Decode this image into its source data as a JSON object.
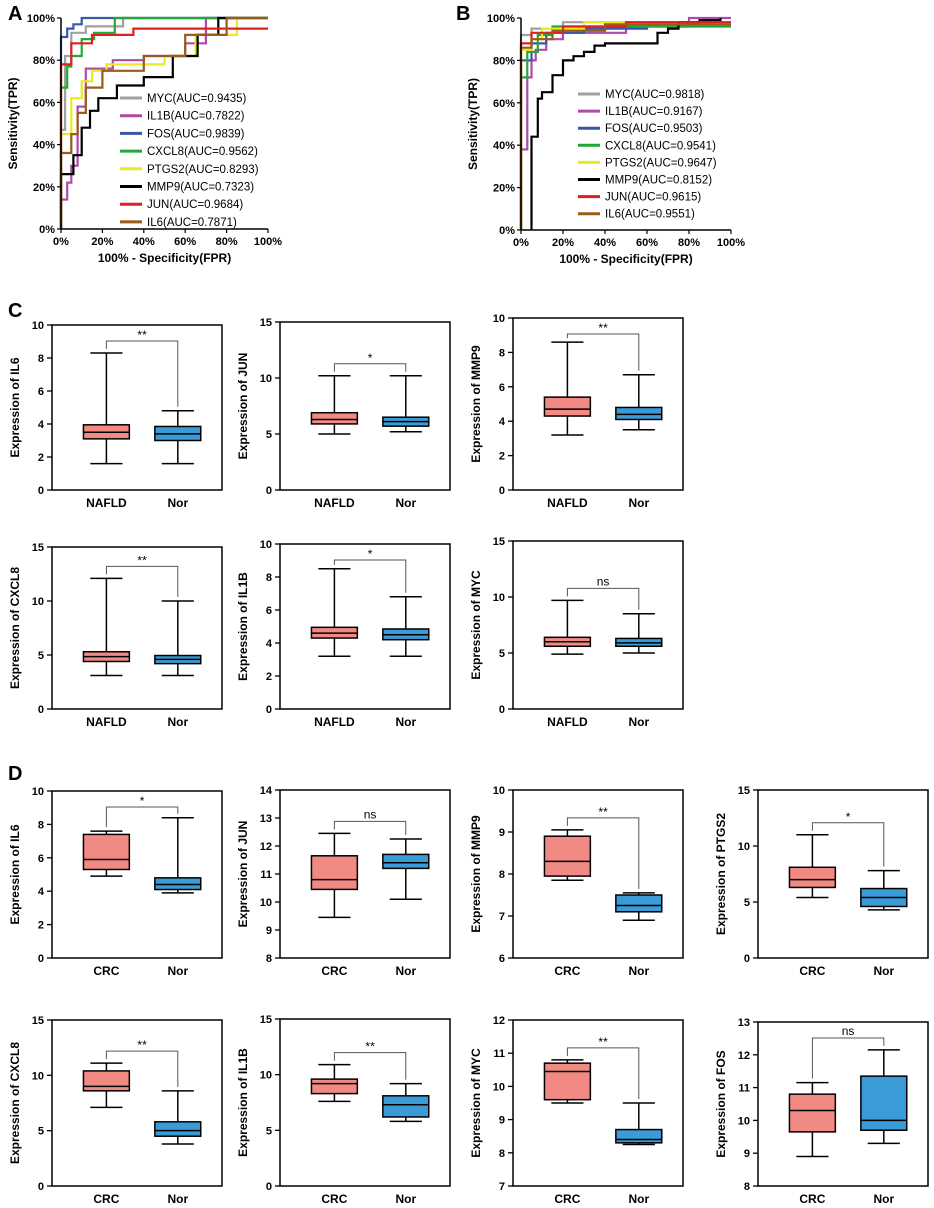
{
  "panels": {
    "A": "A",
    "B": "B",
    "C": "C",
    "D": "D"
  },
  "chart_data": [
    {
      "type": "line",
      "panel": "A",
      "xlabel": "100% - Specificity(FPR)",
      "ylabel": "Sensitivity(TPR)",
      "xlim": [
        0,
        100
      ],
      "ylim": [
        0,
        100
      ],
      "xticks": [
        "0%",
        "20%",
        "40%",
        "60%",
        "80%",
        "100%"
      ],
      "yticks": [
        "0%",
        "20%",
        "40%",
        "60%",
        "80%",
        "100%"
      ],
      "series": [
        {
          "name": "MYC(AUC=0.9435)",
          "color": "#a0a0a0",
          "x": [
            0,
            0,
            2,
            2,
            5,
            5,
            12,
            12,
            30,
            30,
            100
          ],
          "y": [
            0,
            47,
            47,
            82,
            82,
            93,
            93,
            96,
            96,
            100,
            100
          ]
        },
        {
          "name": "IL1B(AUC=0.7822)",
          "color": "#b04aa8",
          "x": [
            0,
            0,
            3,
            3,
            5,
            5,
            8,
            8,
            12,
            12,
            25,
            25,
            40,
            40,
            60,
            60,
            70,
            70,
            100
          ],
          "y": [
            0,
            14,
            14,
            22,
            22,
            30,
            30,
            58,
            58,
            76,
            76,
            80,
            80,
            82,
            82,
            88,
            88,
            100,
            100
          ]
        },
        {
          "name": "FOS(AUC=0.9839)",
          "color": "#3a56a8",
          "x": [
            0,
            0,
            3,
            3,
            6,
            6,
            10,
            10,
            100
          ],
          "y": [
            0,
            91,
            91,
            95,
            95,
            97,
            97,
            100,
            100
          ]
        },
        {
          "name": "CXCL8(AUC=0.9562)",
          "color": "#22a83a",
          "x": [
            0,
            0,
            3,
            3,
            5,
            5,
            10,
            10,
            16,
            16,
            26,
            26,
            100
          ],
          "y": [
            0,
            67,
            67,
            77,
            77,
            82,
            82,
            90,
            90,
            93,
            93,
            100,
            100
          ]
        },
        {
          "name": "PTGS2(AUC=0.8293)",
          "color": "#eaea20",
          "x": [
            0,
            0,
            5,
            5,
            10,
            10,
            15,
            15,
            22,
            22,
            50,
            50,
            65,
            65,
            85,
            85,
            100
          ],
          "y": [
            0,
            45,
            45,
            62,
            62,
            70,
            70,
            75,
            75,
            78,
            78,
            82,
            82,
            92,
            92,
            100,
            100
          ]
        },
        {
          "name": "MMP9(AUC=0.7323)",
          "color": "#000000",
          "x": [
            0,
            0,
            6,
            6,
            10,
            10,
            14,
            14,
            18,
            18,
            27,
            27,
            40,
            40,
            54,
            54,
            66,
            66,
            76,
            76,
            100
          ],
          "y": [
            0,
            26,
            26,
            35,
            35,
            48,
            48,
            56,
            56,
            62,
            62,
            68,
            68,
            72,
            72,
            82,
            82,
            92,
            92,
            100,
            100
          ]
        },
        {
          "name": "JUN(AUC=0.9684)",
          "color": "#e02020",
          "x": [
            0,
            0,
            5,
            5,
            15,
            15,
            35,
            35,
            100
          ],
          "y": [
            0,
            78,
            78,
            88,
            88,
            92,
            92,
            95,
            95
          ]
        },
        {
          "name": "IL6(AUC=0.7871)",
          "color": "#9a5a1a",
          "x": [
            0,
            0,
            5,
            5,
            8,
            8,
            12,
            12,
            20,
            20,
            40,
            40,
            60,
            60,
            80,
            80,
            100
          ],
          "y": [
            0,
            36,
            36,
            45,
            45,
            55,
            55,
            67,
            67,
            75,
            75,
            82,
            82,
            92,
            92,
            100,
            100
          ]
        }
      ]
    },
    {
      "type": "line",
      "panel": "B",
      "xlabel": "100% - Specificity(FPR)",
      "ylabel": "Sensitivity(TPR)",
      "xlim": [
        0,
        100
      ],
      "ylim": [
        0,
        100
      ],
      "xticks": [
        "0%",
        "20%",
        "40%",
        "60%",
        "80%",
        "100%"
      ],
      "yticks": [
        "0%",
        "20%",
        "40%",
        "60%",
        "80%",
        "100%"
      ],
      "series": [
        {
          "name": "MYC(AUC=0.9818)",
          "color": "#a0a0a0",
          "x": [
            0,
            0,
            5,
            5,
            20,
            20,
            100
          ],
          "y": [
            0,
            92,
            92,
            95,
            95,
            98,
            98
          ]
        },
        {
          "name": "IL1B(AUC=0.9167)",
          "color": "#b04aa8",
          "x": [
            0,
            0,
            3,
            3,
            5,
            5,
            7,
            7,
            12,
            12,
            20,
            20,
            50,
            50,
            80,
            80,
            100
          ],
          "y": [
            0,
            38,
            38,
            72,
            72,
            80,
            80,
            85,
            85,
            90,
            90,
            93,
            93,
            96,
            96,
            100,
            100
          ]
        },
        {
          "name": "FOS(AUC=0.9503)",
          "color": "#3a56a8",
          "x": [
            0,
            0,
            5,
            5,
            12,
            12,
            30,
            30,
            60,
            60,
            100
          ],
          "y": [
            0,
            80,
            80,
            88,
            88,
            93,
            93,
            95,
            95,
            98,
            98
          ]
        },
        {
          "name": "CXCL8(AUC=0.9541)",
          "color": "#22a83a",
          "x": [
            0,
            0,
            3,
            3,
            8,
            8,
            15,
            15,
            100
          ],
          "y": [
            0,
            72,
            72,
            84,
            84,
            92,
            92,
            96,
            96
          ]
        },
        {
          "name": "PTGS2(AUC=0.9647)",
          "color": "#eaea20",
          "x": [
            0,
            0,
            5,
            5,
            10,
            10,
            30,
            30,
            100
          ],
          "y": [
            0,
            85,
            85,
            90,
            90,
            95,
            95,
            98,
            98
          ]
        },
        {
          "name": "MMP9(AUC=0.8152)",
          "color": "#000000",
          "x": [
            5,
            5,
            8,
            8,
            10,
            10,
            15,
            15,
            20,
            20,
            25,
            25,
            30,
            30,
            35,
            35,
            40,
            40,
            65,
            65,
            70,
            70,
            75,
            75,
            85,
            85,
            95,
            95
          ],
          "y": [
            0,
            44,
            44,
            62,
            62,
            65,
            65,
            73,
            73,
            80,
            80,
            82,
            82,
            84,
            84,
            87,
            87,
            88,
            88,
            93,
            93,
            95,
            95,
            98,
            98,
            99,
            99,
            100
          ]
        },
        {
          "name": "JUN(AUC=0.9615)",
          "color": "#e02020",
          "x": [
            0,
            0,
            5,
            5,
            20,
            20,
            50,
            50,
            100
          ],
          "y": [
            0,
            88,
            88,
            93,
            93,
            96,
            96,
            98,
            98
          ]
        },
        {
          "name": "IL6(AUC=0.9551)",
          "color": "#9a5a1a",
          "x": [
            0,
            0,
            5,
            5,
            15,
            15,
            40,
            40,
            100
          ],
          "y": [
            0,
            86,
            86,
            90,
            90,
            94,
            94,
            97,
            97
          ]
        }
      ]
    },
    {
      "type": "box",
      "panel": "C",
      "ylabel": "Expression of IL6",
      "ylim": [
        0,
        10
      ],
      "yticks": [
        "0",
        "2",
        "4",
        "6",
        "8",
        "10"
      ],
      "categories": [
        "NAFLD",
        "Nor"
      ],
      "sig": "**",
      "boxes": [
        {
          "min": 1.6,
          "q1": 3.1,
          "median": 3.5,
          "q3": 3.95,
          "max": 8.3,
          "color": "#f28a84"
        },
        {
          "min": 1.6,
          "q1": 3.0,
          "median": 3.4,
          "q3": 3.85,
          "max": 4.8,
          "color": "#3a9bd6"
        }
      ]
    },
    {
      "type": "box",
      "panel": "C",
      "ylabel": "Expression of JUN",
      "ylim": [
        0,
        15
      ],
      "yticks": [
        "0",
        "5",
        "10",
        "15"
      ],
      "categories": [
        "NAFLD",
        "Nor"
      ],
      "sig": "*",
      "boxes": [
        {
          "min": 5.0,
          "q1": 5.9,
          "median": 6.3,
          "q3": 6.9,
          "max": 10.2,
          "color": "#f28a84"
        },
        {
          "min": 5.2,
          "q1": 5.7,
          "median": 6.1,
          "q3": 6.5,
          "max": 10.2,
          "color": "#3a9bd6"
        }
      ]
    },
    {
      "type": "box",
      "panel": "C",
      "ylabel": "Expression of MMP9",
      "ylim": [
        0,
        10
      ],
      "yticks": [
        "0",
        "2",
        "4",
        "6",
        "8",
        "10"
      ],
      "categories": [
        "NAFLD",
        "Nor"
      ],
      "sig": "**",
      "boxes": [
        {
          "min": 3.2,
          "q1": 4.3,
          "median": 4.7,
          "q3": 5.4,
          "max": 8.6,
          "color": "#f28a84"
        },
        {
          "min": 3.5,
          "q1": 4.1,
          "median": 4.4,
          "q3": 4.8,
          "max": 6.7,
          "color": "#3a9bd6"
        }
      ]
    },
    {
      "type": "box",
      "panel": "C",
      "ylabel": "Expression of CXCL8",
      "ylim": [
        0,
        15
      ],
      "yticks": [
        "0",
        "5",
        "10",
        "15"
      ],
      "categories": [
        "NAFLD",
        "Nor"
      ],
      "sig": "**",
      "boxes": [
        {
          "min": 3.1,
          "q1": 4.4,
          "median": 4.85,
          "q3": 5.3,
          "max": 12.1,
          "color": "#f28a84"
        },
        {
          "min": 3.1,
          "q1": 4.2,
          "median": 4.6,
          "q3": 4.95,
          "max": 10.0,
          "color": "#3a9bd6"
        }
      ]
    },
    {
      "type": "box",
      "panel": "C",
      "ylabel": "Expression of IL1B",
      "ylim": [
        0,
        10
      ],
      "yticks": [
        "0",
        "2",
        "4",
        "6",
        "8",
        "10"
      ],
      "categories": [
        "NAFLD",
        "Nor"
      ],
      "sig": "*",
      "boxes": [
        {
          "min": 3.2,
          "q1": 4.3,
          "median": 4.6,
          "q3": 4.95,
          "max": 8.5,
          "color": "#f28a84"
        },
        {
          "min": 3.2,
          "q1": 4.2,
          "median": 4.5,
          "q3": 4.85,
          "max": 6.8,
          "color": "#3a9bd6"
        }
      ]
    },
    {
      "type": "box",
      "panel": "C",
      "ylabel": "Expression of MYC",
      "ylim": [
        0,
        15
      ],
      "yticks": [
        "0",
        "5",
        "10",
        "15"
      ],
      "categories": [
        "NAFLD",
        "Nor"
      ],
      "sig": "ns",
      "boxes": [
        {
          "min": 4.9,
          "q1": 5.6,
          "median": 6.0,
          "q3": 6.4,
          "max": 9.7,
          "color": "#f28a84"
        },
        {
          "min": 5.0,
          "q1": 5.6,
          "median": 5.9,
          "q3": 6.3,
          "max": 8.5,
          "color": "#3a9bd6"
        }
      ]
    },
    {
      "type": "box",
      "panel": "D",
      "ylabel": "Expression of IL6",
      "ylim": [
        0,
        10
      ],
      "yticks": [
        "0",
        "2",
        "4",
        "6",
        "8",
        "10"
      ],
      "categories": [
        "CRC",
        "Nor"
      ],
      "sig": "*",
      "boxes": [
        {
          "min": 4.9,
          "q1": 5.3,
          "median": 5.9,
          "q3": 7.4,
          "max": 7.6,
          "color": "#f28a84"
        },
        {
          "min": 3.9,
          "q1": 4.1,
          "median": 4.4,
          "q3": 4.8,
          "max": 8.4,
          "color": "#3a9bd6"
        }
      ]
    },
    {
      "type": "box",
      "panel": "D",
      "ylabel": "Expression of JUN",
      "ylim": [
        8,
        14
      ],
      "yticks": [
        "8",
        "9",
        "10",
        "11",
        "12",
        "13",
        "14"
      ],
      "categories": [
        "CRC",
        "Nor"
      ],
      "sig": "ns",
      "boxes": [
        {
          "min": 9.45,
          "q1": 10.45,
          "median": 10.8,
          "q3": 11.65,
          "max": 12.45,
          "color": "#f28a84"
        },
        {
          "min": 10.1,
          "q1": 11.2,
          "median": 11.4,
          "q3": 11.7,
          "max": 12.25,
          "color": "#3a9bd6"
        }
      ]
    },
    {
      "type": "box",
      "panel": "D",
      "ylabel": "Expression of MMP9",
      "ylim": [
        6,
        10
      ],
      "yticks": [
        "6",
        "7",
        "8",
        "9",
        "10"
      ],
      "categories": [
        "CRC",
        "Nor"
      ],
      "sig": "**",
      "boxes": [
        {
          "min": 7.85,
          "q1": 7.95,
          "median": 8.3,
          "q3": 8.9,
          "max": 9.05,
          "color": "#f28a84"
        },
        {
          "min": 6.9,
          "q1": 7.1,
          "median": 7.25,
          "q3": 7.5,
          "max": 7.55,
          "color": "#3a9bd6"
        }
      ]
    },
    {
      "type": "box",
      "panel": "D",
      "ylabel": "Expression of PTGS2",
      "ylim": [
        0,
        15
      ],
      "yticks": [
        "0",
        "5",
        "10",
        "15"
      ],
      "categories": [
        "CRC",
        "Nor"
      ],
      "sig": "*",
      "boxes": [
        {
          "min": 5.4,
          "q1": 6.3,
          "median": 7.0,
          "q3": 8.1,
          "max": 11.0,
          "color": "#f28a84"
        },
        {
          "min": 4.3,
          "q1": 4.6,
          "median": 5.4,
          "q3": 6.2,
          "max": 7.8,
          "color": "#3a9bd6"
        }
      ]
    },
    {
      "type": "box",
      "panel": "D",
      "ylabel": "Expression of CXCL8",
      "ylim": [
        0,
        15
      ],
      "yticks": [
        "0",
        "5",
        "10",
        "15"
      ],
      "categories": [
        "CRC",
        "Nor"
      ],
      "sig": "**",
      "boxes": [
        {
          "min": 7.1,
          "q1": 8.6,
          "median": 9.0,
          "q3": 10.4,
          "max": 11.1,
          "color": "#f28a84"
        },
        {
          "min": 3.8,
          "q1": 4.5,
          "median": 5.0,
          "q3": 5.8,
          "max": 8.6,
          "color": "#3a9bd6"
        }
      ]
    },
    {
      "type": "box",
      "panel": "D",
      "ylabel": "Expression of IL1B",
      "ylim": [
        0,
        15
      ],
      "yticks": [
        "0",
        "5",
        "10",
        "15"
      ],
      "categories": [
        "CRC",
        "Nor"
      ],
      "sig": "**",
      "boxes": [
        {
          "min": 7.6,
          "q1": 8.3,
          "median": 9.2,
          "q3": 9.6,
          "max": 10.9,
          "color": "#f28a84"
        },
        {
          "min": 5.8,
          "q1": 6.2,
          "median": 7.3,
          "q3": 8.1,
          "max": 9.2,
          "color": "#3a9bd6"
        }
      ]
    },
    {
      "type": "box",
      "panel": "D",
      "ylabel": "Expression of MYC",
      "ylim": [
        7,
        12
      ],
      "yticks": [
        "7",
        "8",
        "9",
        "10",
        "11",
        "12"
      ],
      "categories": [
        "CRC",
        "Nor"
      ],
      "sig": "**",
      "boxes": [
        {
          "min": 9.5,
          "q1": 9.6,
          "median": 10.45,
          "q3": 10.7,
          "max": 10.8,
          "color": "#f28a84"
        },
        {
          "min": 8.25,
          "q1": 8.3,
          "median": 8.4,
          "q3": 8.7,
          "max": 9.5,
          "color": "#3a9bd6"
        }
      ]
    },
    {
      "type": "box",
      "panel": "D",
      "ylabel": "Expression of FOS",
      "ylim": [
        8,
        13
      ],
      "yticks": [
        "8",
        "9",
        "10",
        "11",
        "12",
        "13"
      ],
      "categories": [
        "CRC",
        "Nor"
      ],
      "sig": "ns",
      "boxes": [
        {
          "min": 8.9,
          "q1": 9.65,
          "median": 10.3,
          "q3": 10.8,
          "max": 11.15,
          "color": "#f28a84"
        },
        {
          "min": 9.3,
          "q1": 9.7,
          "median": 10.0,
          "q3": 11.35,
          "max": 12.15,
          "color": "#3a9bd6"
        }
      ]
    }
  ]
}
